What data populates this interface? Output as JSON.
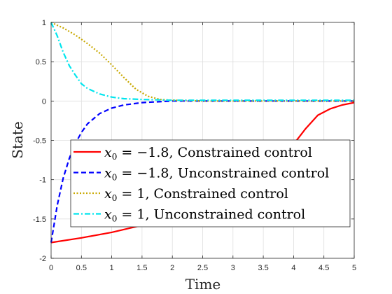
{
  "chart_data": {
    "type": "line",
    "title": "",
    "xlabel": "Time",
    "ylabel": "State",
    "xlim": [
      0,
      5
    ],
    "ylim": [
      -2,
      1
    ],
    "xticks": [
      "0",
      "0.5",
      "1",
      "1.5",
      "2",
      "2.5",
      "3",
      "3.5",
      "4",
      "4.5",
      "5"
    ],
    "yticks": [
      "1",
      "0.5",
      "0",
      "-0.5",
      "-1",
      "-1.5",
      "-2"
    ],
    "grid": true,
    "legend_position": "lower-center",
    "series": [
      {
        "name": "Constrained control",
        "x0": "−1.8",
        "color": "#ff0000",
        "style": "solid",
        "x": [
          0,
          0.5,
          1,
          1.5,
          2,
          2.5,
          3,
          3.5,
          3.8,
          4,
          4.2,
          4.4,
          4.6,
          4.8,
          5
        ],
        "y": [
          -1.8,
          -1.74,
          -1.67,
          -1.58,
          -1.47,
          -1.33,
          -1.15,
          -0.92,
          -0.72,
          -0.55,
          -0.35,
          -0.18,
          -0.1,
          -0.05,
          -0.02
        ]
      },
      {
        "name": "Unconstrained control",
        "x0": "−1.8",
        "color": "#0000ff",
        "style": "dashed",
        "x": [
          0,
          0.1,
          0.2,
          0.3,
          0.4,
          0.5,
          0.6,
          0.8,
          1,
          1.2,
          1.5,
          2,
          3,
          4,
          5
        ],
        "y": [
          -1.8,
          -1.33,
          -0.98,
          -0.73,
          -0.54,
          -0.4,
          -0.29,
          -0.16,
          -0.09,
          -0.05,
          -0.02,
          0,
          0,
          0,
          0
        ]
      },
      {
        "name": "Constrained control",
        "x0": "1",
        "color": "#c8a800",
        "style": "dotted",
        "x": [
          0,
          0.2,
          0.4,
          0.6,
          0.8,
          1,
          1.2,
          1.4,
          1.6,
          1.8,
          2,
          2.5,
          3,
          4,
          5
        ],
        "y": [
          1,
          0.93,
          0.84,
          0.73,
          0.61,
          0.46,
          0.3,
          0.15,
          0.06,
          0.02,
          0.01,
          0,
          0,
          0,
          0
        ]
      },
      {
        "name": "Unconstrained control",
        "x0": "1",
        "color": "#00e5ee",
        "style": "dashdot",
        "x": [
          0,
          0.1,
          0.2,
          0.3,
          0.4,
          0.5,
          0.6,
          0.8,
          1,
          1.2,
          1.5,
          2,
          3,
          4,
          5
        ],
        "y": [
          1,
          0.83,
          0.62,
          0.45,
          0.33,
          0.22,
          0.16,
          0.09,
          0.05,
          0.03,
          0.02,
          0.01,
          0.01,
          0.01,
          0.01
        ]
      }
    ]
  }
}
